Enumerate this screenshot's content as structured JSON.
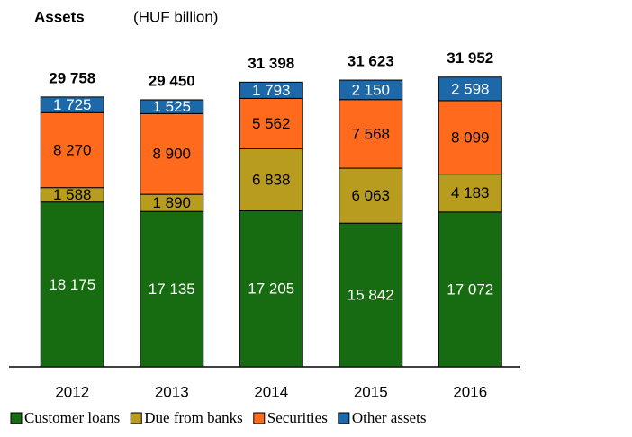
{
  "chart_data": {
    "type": "stacked_bar",
    "title": "Assets",
    "subtitle": "(HUF billion)",
    "categories": [
      "2012",
      "2013",
      "2014",
      "2015",
      "2016"
    ],
    "series": [
      {
        "name": "Customer loans",
        "color": "#176b10",
        "values": [
          18175,
          17135,
          17205,
          15842,
          17072
        ],
        "value_labels": [
          "18 175",
          "17 135",
          "17 205",
          "15 842",
          "17 072"
        ]
      },
      {
        "name": "Due from banks",
        "color": "#b89c1e",
        "values": [
          1588,
          1890,
          6838,
          6063,
          4183
        ],
        "value_labels": [
          "1 588",
          "1 890",
          "6 838",
          "6 063",
          "4 183"
        ]
      },
      {
        "name": "Securities",
        "color": "#ff6a1c",
        "values": [
          8270,
          8900,
          5562,
          7568,
          8099
        ],
        "value_labels": [
          "8 270",
          "8 900",
          "5 562",
          "7 568",
          "8 099"
        ]
      },
      {
        "name": "Other assets",
        "color": "#1d68a8",
        "values": [
          1725,
          1525,
          1793,
          2150,
          2598
        ],
        "value_labels": [
          "1 725",
          "1 525",
          "1 793",
          "2 150",
          "2 598"
        ]
      }
    ],
    "totals": [
      29758,
      29450,
      31398,
      31623,
      31952
    ],
    "total_labels": [
      "29 758",
      "29 450",
      "31 398",
      "31 623",
      "31 952"
    ],
    "ylim": [
      0,
      35000
    ],
    "legend": "bottom"
  }
}
